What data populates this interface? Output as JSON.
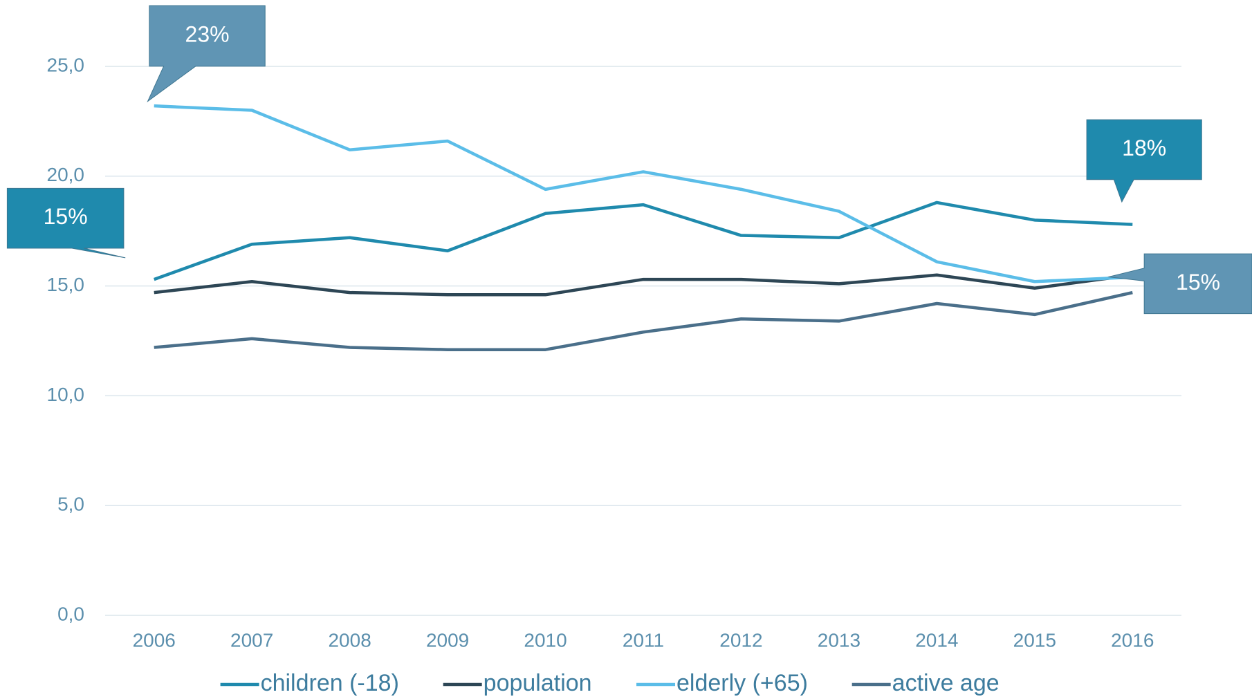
{
  "chart_data": {
    "type": "line",
    "categories": [
      "2006",
      "2007",
      "2008",
      "2009",
      "2010",
      "2011",
      "2012",
      "2013",
      "2014",
      "2015",
      "2016"
    ],
    "series": [
      {
        "name": "children (-18)",
        "color": "#1f8aad",
        "values": [
          15.3,
          16.9,
          17.2,
          16.6,
          18.3,
          18.7,
          17.3,
          17.2,
          18.8,
          18.0,
          17.8
        ]
      },
      {
        "name": "population",
        "color": "#2d4655",
        "values": [
          14.7,
          15.2,
          14.7,
          14.6,
          14.6,
          15.3,
          15.3,
          15.1,
          15.5,
          14.9,
          15.5
        ]
      },
      {
        "name": "elderly (+65)",
        "color": "#5bbde8",
        "values": [
          23.2,
          23.0,
          21.2,
          21.6,
          19.4,
          20.2,
          19.4,
          18.4,
          16.1,
          15.2,
          15.4
        ]
      },
      {
        "name": "active age",
        "color": "#4a6f8a",
        "values": [
          12.2,
          12.6,
          12.2,
          12.1,
          12.1,
          12.9,
          13.5,
          13.4,
          14.2,
          13.7,
          14.7
        ]
      }
    ],
    "ylim": [
      0,
      25
    ],
    "yticks": [
      {
        "value": 0,
        "label": "0,0"
      },
      {
        "value": 5,
        "label": "5,0"
      },
      {
        "value": 10,
        "label": "10,0"
      },
      {
        "value": 15,
        "label": "15,0"
      },
      {
        "value": 20,
        "label": "20,0"
      },
      {
        "value": 25,
        "label": "25,0"
      }
    ],
    "grid": true,
    "legend": "bottom",
    "annotations": [
      "23%",
      "15%",
      "18%",
      "15%"
    ]
  }
}
